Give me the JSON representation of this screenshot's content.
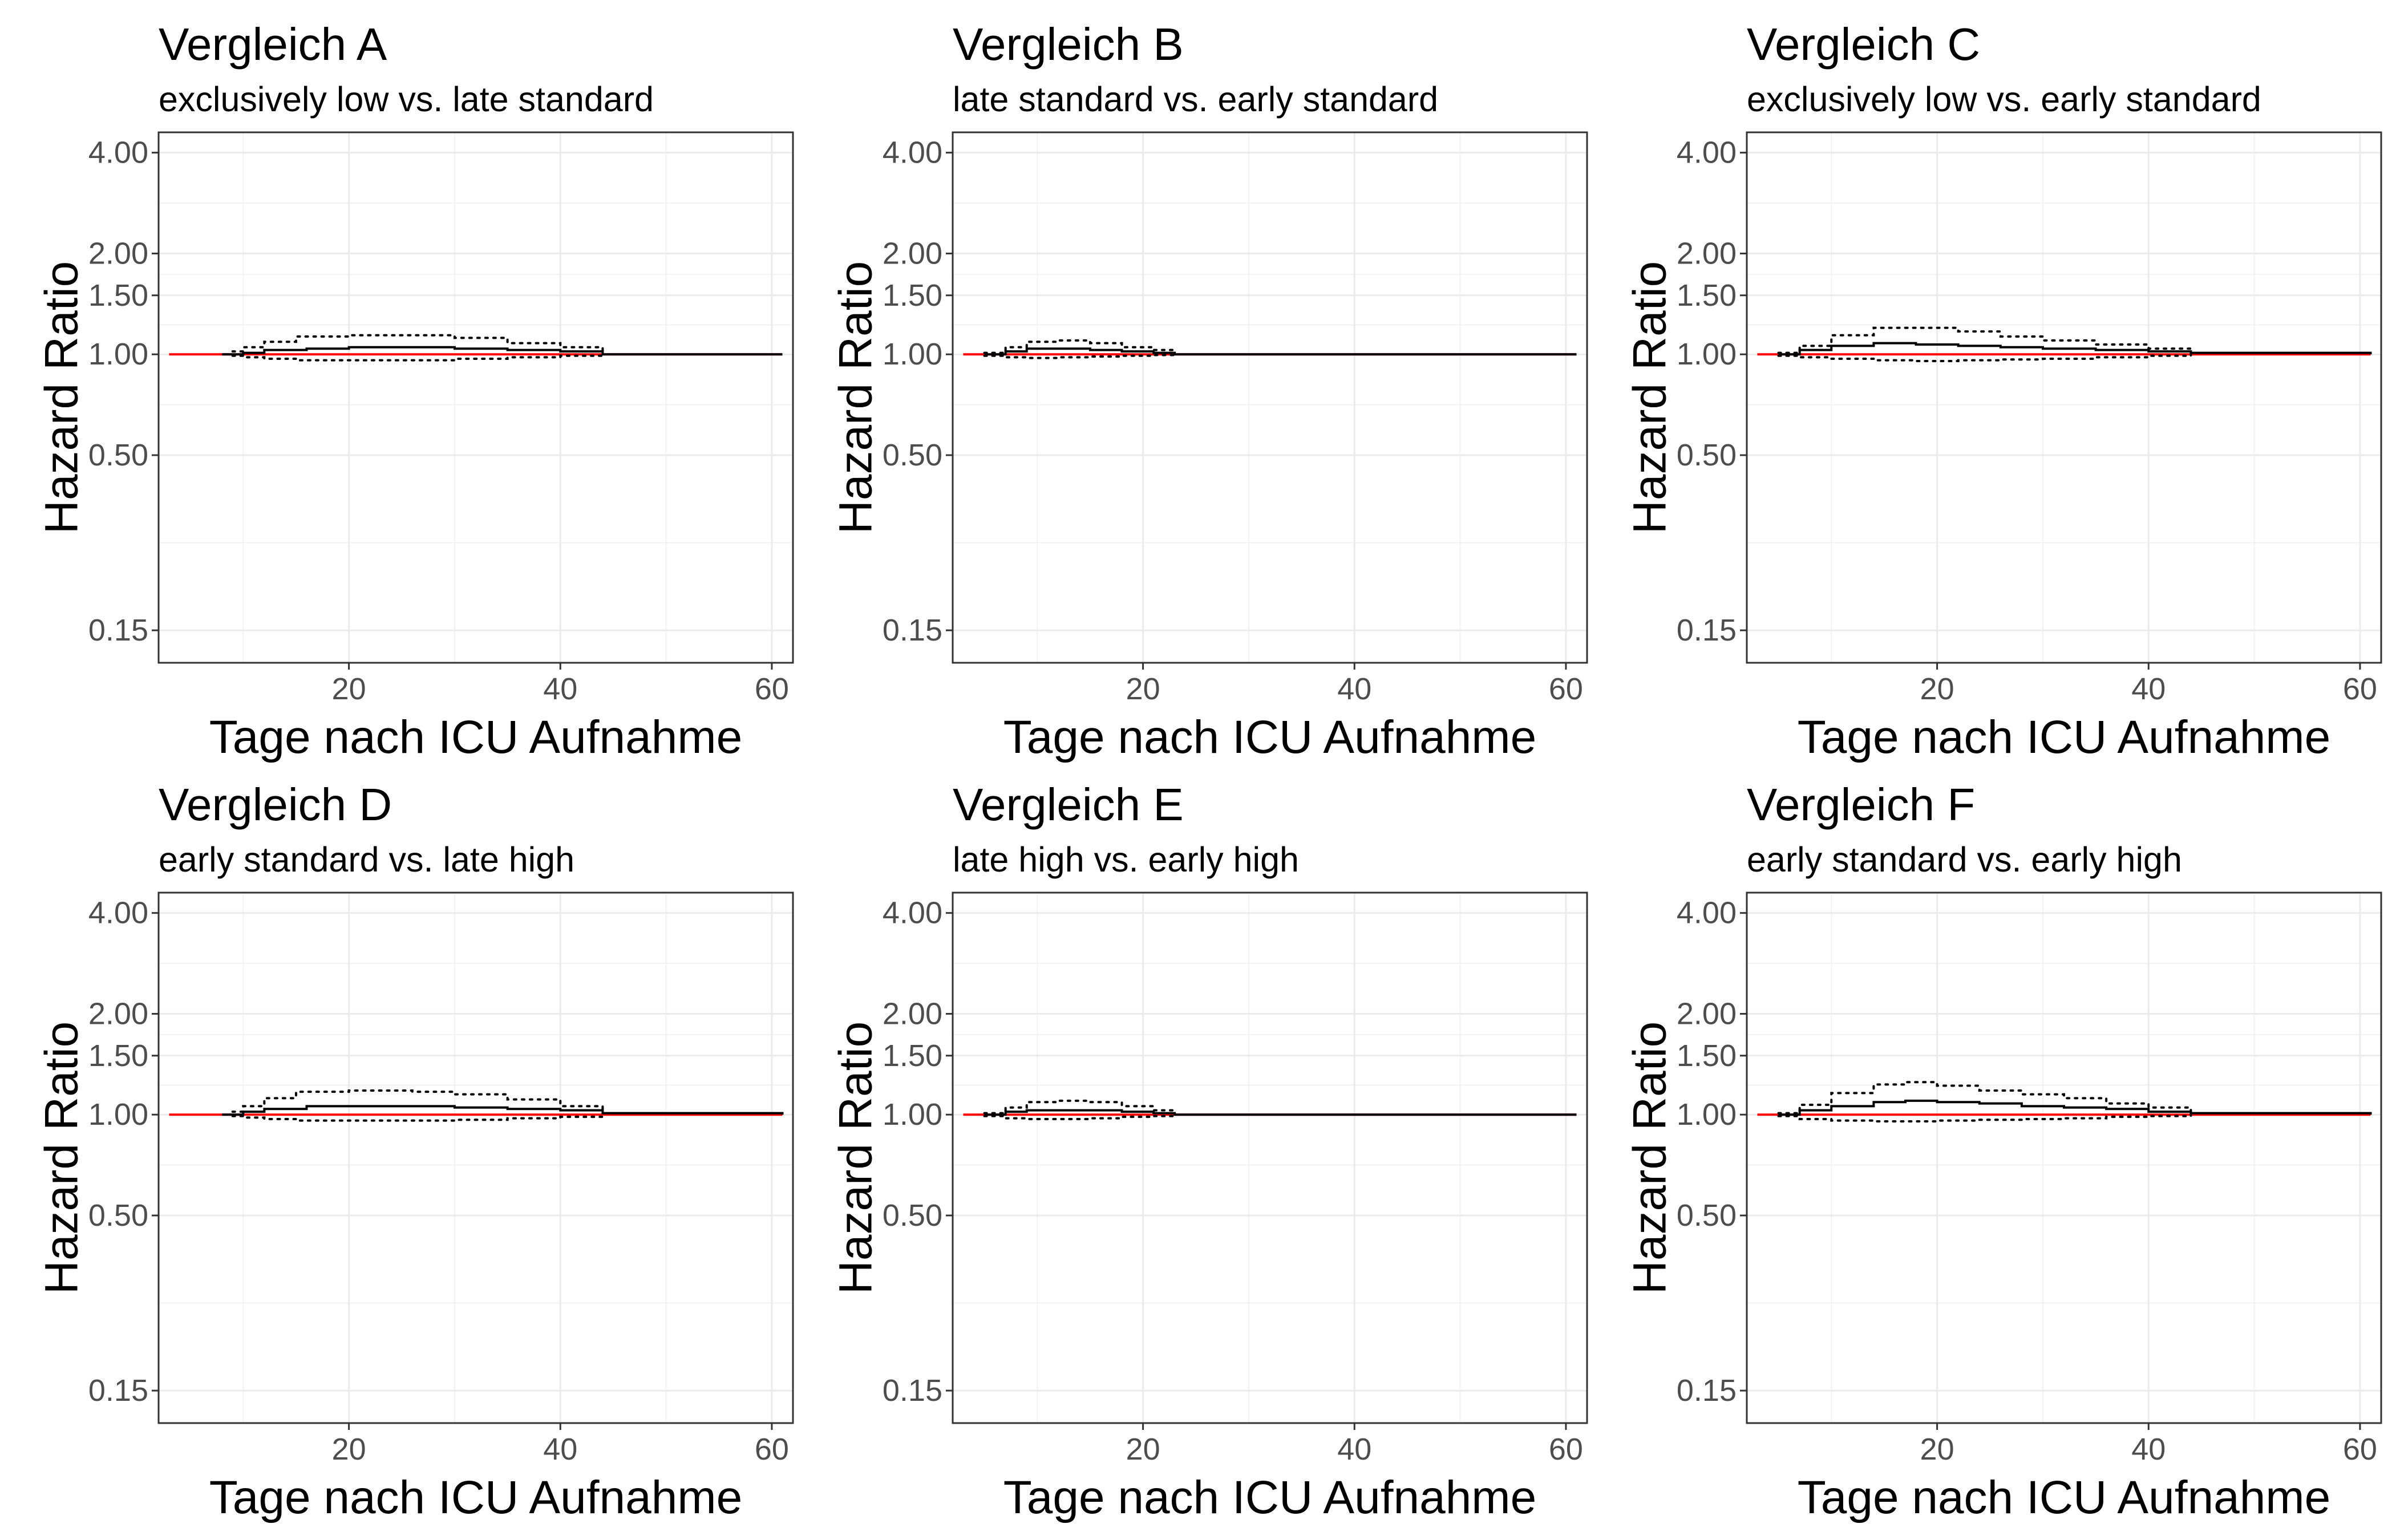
{
  "chart_data": [
    {
      "type": "line",
      "title": "Vergleich A",
      "subtitle": "exclusively low vs. late standard",
      "xlabel": "Tage nach ICU Aufnahme",
      "ylabel": "Hazard Ratio",
      "xlim": [
        2,
        62
      ],
      "ylim": [
        0.12,
        4.6
      ],
      "y_scale": "log",
      "x_ticks": [
        20,
        40,
        60
      ],
      "y_ticks": [
        0.15,
        0.5,
        1.0,
        1.5,
        2.0,
        4.0
      ],
      "y_tick_labels": [
        "0.15",
        "0.50",
        "1.00",
        "1.50",
        "2.00",
        "4.00"
      ],
      "grid": true,
      "reference_line": {
        "y": 1.0,
        "x": [
          3,
          61
        ],
        "color": "#ff0000"
      },
      "series": [
        {
          "role": "estimate",
          "style": "solid",
          "x": [
            8,
            10,
            12,
            16,
            20,
            26,
            30,
            35,
            40,
            44,
            61
          ],
          "y": [
            1.0,
            1.01,
            1.03,
            1.04,
            1.05,
            1.05,
            1.04,
            1.03,
            1.02,
            1.0,
            1.0
          ]
        },
        {
          "role": "upper",
          "style": "dotted",
          "x": [
            9,
            10,
            12,
            15,
            20,
            26,
            30,
            35,
            40,
            44
          ],
          "y": [
            1.02,
            1.05,
            1.09,
            1.13,
            1.14,
            1.14,
            1.12,
            1.08,
            1.05,
            1.02
          ]
        },
        {
          "role": "lower",
          "style": "dotted",
          "x": [
            9,
            10,
            12,
            15,
            20,
            26,
            30,
            35,
            40,
            44
          ],
          "y": [
            0.99,
            0.98,
            0.97,
            0.96,
            0.96,
            0.96,
            0.97,
            0.98,
            0.99,
            0.995
          ]
        }
      ]
    },
    {
      "type": "line",
      "title": "Vergleich B",
      "subtitle": "late standard vs. early standard",
      "xlabel": "Tage nach ICU Aufnahme",
      "ylabel": "Hazard Ratio",
      "xlim": [
        2,
        62
      ],
      "ylim": [
        0.12,
        4.6
      ],
      "y_scale": "log",
      "x_ticks": [
        20,
        40,
        60
      ],
      "y_ticks": [
        0.15,
        0.5,
        1.0,
        1.5,
        2.0,
        4.0
      ],
      "y_tick_labels": [
        "0.15",
        "0.50",
        "1.00",
        "1.50",
        "2.00",
        "4.00"
      ],
      "grid": true,
      "reference_line": {
        "y": 1.0,
        "x": [
          3,
          61
        ],
        "color": "#ff0000"
      },
      "series": [
        {
          "role": "estimate",
          "style": "solid",
          "x": [
            5,
            7,
            9,
            12,
            15,
            18,
            21,
            23,
            61
          ],
          "y": [
            1.0,
            1.02,
            1.04,
            1.04,
            1.03,
            1.02,
            1.01,
            1.0,
            1.0
          ]
        },
        {
          "role": "upper",
          "style": "dotted",
          "x": [
            5,
            7,
            9,
            12,
            15,
            18,
            21,
            23
          ],
          "y": [
            1.01,
            1.05,
            1.09,
            1.1,
            1.08,
            1.05,
            1.03,
            1.01
          ]
        },
        {
          "role": "lower",
          "style": "dotted",
          "x": [
            5,
            7,
            9,
            12,
            15,
            18,
            21,
            23
          ],
          "y": [
            0.99,
            0.98,
            0.975,
            0.98,
            0.985,
            0.99,
            0.995,
            1.0
          ]
        }
      ]
    },
    {
      "type": "line",
      "title": "Vergleich C",
      "subtitle": "exclusively low vs. early standard",
      "xlabel": "Tage nach ICU Aufnahme",
      "ylabel": "Hazard Ratio",
      "xlim": [
        2,
        62
      ],
      "ylim": [
        0.12,
        4.6
      ],
      "y_scale": "log",
      "x_ticks": [
        20,
        40,
        60
      ],
      "y_ticks": [
        0.15,
        0.5,
        1.0,
        1.5,
        2.0,
        4.0
      ],
      "y_tick_labels": [
        "0.15",
        "0.50",
        "1.00",
        "1.50",
        "2.00",
        "4.00"
      ],
      "grid": true,
      "reference_line": {
        "y": 1.0,
        "x": [
          3,
          61
        ],
        "color": "#ff0000"
      },
      "series": [
        {
          "role": "estimate",
          "style": "solid",
          "x": [
            5,
            7,
            10,
            14,
            18,
            22,
            26,
            30,
            35,
            40,
            44,
            61
          ],
          "y": [
            1.0,
            1.03,
            1.06,
            1.08,
            1.07,
            1.06,
            1.05,
            1.04,
            1.03,
            1.02,
            1.01,
            1.0
          ]
        },
        {
          "role": "upper",
          "style": "dotted",
          "x": [
            5,
            7,
            10,
            14,
            18,
            22,
            26,
            30,
            35,
            40,
            44
          ],
          "y": [
            1.01,
            1.06,
            1.14,
            1.2,
            1.2,
            1.17,
            1.13,
            1.1,
            1.07,
            1.04,
            1.02
          ]
        },
        {
          "role": "lower",
          "style": "dotted",
          "x": [
            5,
            7,
            10,
            14,
            18,
            22,
            26,
            30,
            35,
            40,
            44
          ],
          "y": [
            0.99,
            0.98,
            0.97,
            0.96,
            0.955,
            0.96,
            0.965,
            0.97,
            0.98,
            0.99,
            0.995
          ]
        }
      ]
    },
    {
      "type": "line",
      "title": "Vergleich D",
      "subtitle": "early standard vs. late high",
      "xlabel": "Tage nach ICU Aufnahme",
      "ylabel": "Hazard Ratio",
      "xlim": [
        2,
        62
      ],
      "ylim": [
        0.12,
        4.6
      ],
      "y_scale": "log",
      "x_ticks": [
        20,
        40,
        60
      ],
      "y_ticks": [
        0.15,
        0.5,
        1.0,
        1.5,
        2.0,
        4.0
      ],
      "y_tick_labels": [
        "0.15",
        "0.50",
        "1.00",
        "1.50",
        "2.00",
        "4.00"
      ],
      "grid": true,
      "reference_line": {
        "y": 1.0,
        "x": [
          3,
          61
        ],
        "color": "#ff0000"
      },
      "series": [
        {
          "role": "estimate",
          "style": "solid",
          "x": [
            8,
            10,
            12,
            16,
            20,
            26,
            30,
            35,
            40,
            44,
            61
          ],
          "y": [
            1.0,
            1.02,
            1.04,
            1.06,
            1.06,
            1.06,
            1.05,
            1.04,
            1.03,
            1.01,
            1.0
          ]
        },
        {
          "role": "upper",
          "style": "dotted",
          "x": [
            9,
            10,
            12,
            15,
            20,
            26,
            30,
            35,
            40,
            44
          ],
          "y": [
            1.02,
            1.06,
            1.12,
            1.17,
            1.18,
            1.17,
            1.15,
            1.11,
            1.06,
            1.02
          ]
        },
        {
          "role": "lower",
          "style": "dotted",
          "x": [
            9,
            10,
            12,
            15,
            20,
            26,
            30,
            35,
            40,
            44
          ],
          "y": [
            0.99,
            0.98,
            0.97,
            0.96,
            0.96,
            0.96,
            0.965,
            0.975,
            0.985,
            0.995
          ]
        }
      ]
    },
    {
      "type": "line",
      "title": "Vergleich E",
      "subtitle": "late high vs. early high",
      "xlabel": "Tage nach ICU Aufnahme",
      "ylabel": "Hazard Ratio",
      "xlim": [
        2,
        62
      ],
      "ylim": [
        0.12,
        4.6
      ],
      "y_scale": "log",
      "x_ticks": [
        20,
        40,
        60
      ],
      "y_ticks": [
        0.15,
        0.5,
        1.0,
        1.5,
        2.0,
        4.0
      ],
      "y_tick_labels": [
        "0.15",
        "0.50",
        "1.00",
        "1.50",
        "2.00",
        "4.00"
      ],
      "grid": true,
      "reference_line": {
        "y": 1.0,
        "x": [
          3,
          61
        ],
        "color": "#ff0000"
      },
      "series": [
        {
          "role": "estimate",
          "style": "solid",
          "x": [
            5,
            7,
            9,
            12,
            15,
            18,
            21,
            23,
            61
          ],
          "y": [
            1.0,
            1.02,
            1.03,
            1.03,
            1.03,
            1.02,
            1.01,
            1.0,
            1.0
          ]
        },
        {
          "role": "upper",
          "style": "dotted",
          "x": [
            5,
            7,
            9,
            12,
            15,
            18,
            21,
            23
          ],
          "y": [
            1.01,
            1.05,
            1.09,
            1.1,
            1.09,
            1.06,
            1.03,
            1.01
          ]
        },
        {
          "role": "lower",
          "style": "dotted",
          "x": [
            5,
            7,
            9,
            12,
            15,
            18,
            21,
            23
          ],
          "y": [
            0.99,
            0.975,
            0.97,
            0.97,
            0.975,
            0.985,
            0.99,
            0.995
          ]
        }
      ]
    },
    {
      "type": "line",
      "title": "Vergleich F",
      "subtitle": "early standard vs. early high",
      "xlabel": "Tage nach ICU Aufnahme",
      "ylabel": "Hazard Ratio",
      "xlim": [
        2,
        62
      ],
      "ylim": [
        0.12,
        4.6
      ],
      "y_scale": "log",
      "x_ticks": [
        20,
        40,
        60
      ],
      "y_ticks": [
        0.15,
        0.5,
        1.0,
        1.5,
        2.0,
        4.0
      ],
      "y_tick_labels": [
        "0.15",
        "0.50",
        "1.00",
        "1.50",
        "2.00",
        "4.00"
      ],
      "grid": true,
      "reference_line": {
        "y": 1.0,
        "x": [
          3,
          61
        ],
        "color": "#ff0000"
      },
      "series": [
        {
          "role": "estimate",
          "style": "solid",
          "x": [
            5,
            7,
            10,
            14,
            17,
            20,
            24,
            28,
            32,
            36,
            40,
            44,
            61
          ],
          "y": [
            1.0,
            1.03,
            1.06,
            1.09,
            1.1,
            1.09,
            1.08,
            1.06,
            1.05,
            1.04,
            1.02,
            1.01,
            1.0
          ]
        },
        {
          "role": "upper",
          "style": "dotted",
          "x": [
            5,
            7,
            10,
            14,
            17,
            20,
            24,
            28,
            32,
            36,
            40,
            44
          ],
          "y": [
            1.01,
            1.07,
            1.16,
            1.23,
            1.25,
            1.22,
            1.18,
            1.15,
            1.12,
            1.08,
            1.05,
            1.02
          ]
        },
        {
          "role": "lower",
          "style": "dotted",
          "x": [
            5,
            7,
            10,
            14,
            17,
            20,
            24,
            28,
            32,
            36,
            40,
            44
          ],
          "y": [
            0.99,
            0.97,
            0.96,
            0.955,
            0.955,
            0.96,
            0.965,
            0.97,
            0.975,
            0.985,
            0.99,
            0.995
          ]
        }
      ]
    }
  ]
}
